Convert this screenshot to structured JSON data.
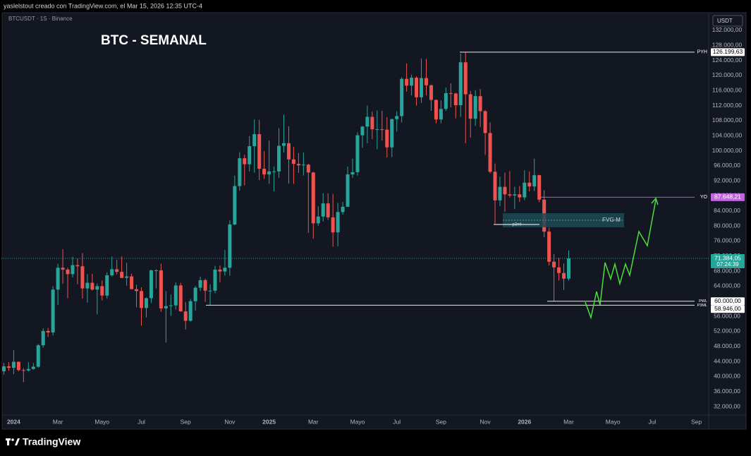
{
  "header": "yaslelstout creado con TradingView.com, el Mar 15, 2026 12:35 UTC-4",
  "footer": "TradingView",
  "chart_data": {
    "type": "candlestick",
    "title": "BTC - SEMANAL",
    "symbol": "BTCUSDT · 1S · Binance",
    "currency": "USDT",
    "up_color": "#26a69a",
    "down_color": "#ef5350",
    "categories": [
      null,
      null,
      "2024",
      null,
      null,
      null,
      null,
      null,
      null,
      null,
      null,
      "Mar",
      null,
      null,
      null,
      null,
      null,
      null,
      null,
      null,
      "Mayo",
      null,
      null,
      null,
      null,
      null,
      null,
      null,
      "Jul",
      null,
      null,
      null,
      null,
      null,
      null,
      null,
      null,
      "Sep",
      null,
      null,
      null,
      null,
      null,
      null,
      null,
      null,
      "Nov",
      null,
      null,
      null,
      null,
      null,
      null,
      null,
      "2025",
      null,
      null,
      null,
      null,
      null,
      null,
      null,
      null,
      "Mar",
      null,
      null,
      null,
      null,
      null,
      null,
      null,
      null,
      "Mayo",
      null,
      null,
      null,
      null,
      null,
      null,
      null,
      "Jul",
      null,
      null,
      null,
      null,
      null,
      null,
      null,
      null,
      "Sep",
      null,
      null,
      null,
      null,
      null,
      null,
      null,
      null,
      "Nov",
      null,
      null,
      null,
      null,
      null,
      null,
      null,
      "2026",
      null,
      null,
      null,
      null,
      null,
      null,
      null,
      null,
      "Mar",
      null,
      null,
      null,
      null,
      null,
      null,
      null,
      null,
      "Mayo",
      null,
      null,
      null,
      null,
      null,
      null,
      null,
      "Jul",
      null,
      null,
      null,
      null,
      null,
      null,
      null,
      null,
      "Sep",
      null,
      null
    ],
    "open": [
      41400,
      42700,
      42300,
      43900,
      41700,
      41600,
      42000,
      42600,
      48300,
      52100,
      51700,
      63100,
      68900,
      68400,
      67200,
      69600,
      69300,
      63400,
      64900,
      63100,
      64000,
      61500,
      66900,
      68500,
      67800,
      66200,
      66600,
      63200,
      62700,
      58200,
      60800,
      68200,
      68200,
      58100,
      58700,
      58900,
      64200,
      57300,
      54800,
      60000,
      63600,
      65600,
      62800,
      62800,
      68400,
      67900,
      68900,
      80400,
      90600,
      98000,
      96400,
      101200,
      104400,
      95200,
      93700,
      94500,
      94500,
      101300,
      102000,
      97700,
      96500,
      96100,
      96300,
      94200,
      80700,
      82500,
      86000,
      82300,
      78300,
      83700,
      85100,
      93700,
      94300,
      104100,
      106400,
      109000,
      105700,
      105700,
      105600,
      100900,
      108400,
      109200,
      119100,
      117300,
      119400,
      114200,
      119300,
      117400,
      113500,
      108300,
      111100,
      115300,
      115200,
      112100,
      123500,
      115000,
      108500,
      114500,
      110500,
      104700,
      94400,
      86800,
      90400,
      88400,
      88100,
      88400,
      87600,
      91500,
      90500,
      93500,
      87000,
      78500,
      70500,
      69000,
      67500,
      66000,
      null,
      null,
      null,
      null,
      null,
      null,
      null,
      null,
      null,
      null,
      null,
      null,
      null,
      null,
      null,
      null,
      null,
      null,
      null,
      null,
      null,
      null,
      null,
      null,
      null,
      null,
      null,
      null
    ],
    "high": [
      43600,
      43800,
      47000,
      44000,
      42200,
      43800,
      43600,
      48600,
      52800,
      52900,
      64000,
      70000,
      73800,
      68900,
      71800,
      71300,
      72800,
      67200,
      67300,
      64700,
      65500,
      67700,
      71900,
      71000,
      71900,
      70200,
      67300,
      64400,
      63700,
      61000,
      68400,
      68500,
      70000,
      62700,
      61800,
      65000,
      64900,
      59800,
      60600,
      64100,
      66500,
      66000,
      64500,
      69400,
      69500,
      73600,
      81500,
      93400,
      99600,
      98900,
      103900,
      108300,
      108200,
      99900,
      102700,
      95800,
      106000,
      109600,
      106500,
      101000,
      99400,
      99500,
      96500,
      94400,
      85200,
      88700,
      88700,
      88500,
      86100,
      86400,
      95800,
      97900,
      104900,
      106600,
      112000,
      110400,
      110700,
      110600,
      108900,
      108500,
      110500,
      119500,
      123200,
      120200,
      119800,
      124500,
      124400,
      117600,
      113600,
      113400,
      116800,
      117900,
      115400,
      125800,
      126200,
      115900,
      116100,
      116400,
      110800,
      107500,
      96600,
      93100,
      94200,
      94600,
      90400,
      90600,
      94800,
      94500,
      97900,
      93600,
      89500,
      79500,
      72500,
      71500,
      70000,
      73500,
      null,
      null,
      null,
      null,
      null,
      null,
      null,
      null,
      null,
      null,
      null,
      null,
      null,
      null,
      null,
      null,
      null,
      null,
      null,
      null,
      null,
      null,
      null,
      null,
      null,
      null,
      null,
      null
    ],
    "low": [
      40500,
      41500,
      40600,
      41400,
      38500,
      41300,
      41800,
      42300,
      47700,
      50500,
      50900,
      59000,
      64600,
      60800,
      66300,
      64500,
      60700,
      59600,
      62800,
      56500,
      60200,
      60700,
      66600,
      67100,
      66100,
      64100,
      63400,
      58400,
      53500,
      55700,
      59500,
      63400,
      57200,
      49000,
      56100,
      57800,
      57200,
      52500,
      54600,
      57500,
      62700,
      59800,
      58900,
      62100,
      65100,
      66800,
      66800,
      80200,
      89400,
      90800,
      94500,
      94200,
      92200,
      92500,
      91200,
      89200,
      92800,
      99500,
      91300,
      91200,
      94100,
      93400,
      78200,
      76600,
      80000,
      81200,
      81600,
      74500,
      74600,
      83000,
      85100,
      92800,
      93400,
      100800,
      102000,
      103100,
      100400,
      102700,
      98200,
      98300,
      105100,
      107500,
      115700,
      114700,
      112000,
      112700,
      114700,
      110600,
      107300,
      107300,
      110600,
      111500,
      108600,
      109000,
      102000,
      103500,
      106600,
      106300,
      98900,
      94000,
      80600,
      85300,
      83800,
      87600,
      84500,
      86400,
      86900,
      89200,
      89300,
      86300,
      77000,
      69500,
      60000,
      65500,
      63000,
      65500,
      null,
      null,
      null,
      null,
      null,
      null,
      null,
      null,
      null,
      null,
      null,
      null,
      null,
      null,
      null,
      null,
      null,
      null,
      null,
      null,
      null,
      null,
      null,
      null,
      null,
      null,
      null,
      null
    ],
    "close": [
      42700,
      42300,
      43900,
      41700,
      41600,
      42000,
      42600,
      48300,
      52100,
      51700,
      63100,
      68900,
      68400,
      67200,
      69600,
      69300,
      63400,
      64900,
      63100,
      64000,
      61500,
      66900,
      68500,
      67800,
      66200,
      66600,
      63200,
      62700,
      58200,
      60800,
      68200,
      68200,
      58100,
      58700,
      58900,
      64200,
      57300,
      54800,
      60000,
      63600,
      65600,
      62800,
      62800,
      68400,
      67900,
      68900,
      80400,
      90600,
      98000,
      96400,
      101200,
      104400,
      95200,
      93700,
      94500,
      94500,
      101300,
      102000,
      97700,
      96500,
      96100,
      96300,
      94200,
      80700,
      82500,
      86000,
      82300,
      78300,
      83700,
      85100,
      93700,
      94300,
      104100,
      106400,
      109000,
      105700,
      105700,
      105600,
      100900,
      108400,
      109200,
      119100,
      117300,
      119400,
      114200,
      119300,
      117400,
      113500,
      108300,
      111100,
      115300,
      115200,
      112100,
      123500,
      115000,
      108500,
      114500,
      110500,
      104700,
      94400,
      86800,
      90400,
      88400,
      88100,
      88400,
      87600,
      91500,
      90500,
      93500,
      87000,
      78500,
      70500,
      69000,
      67500,
      66000,
      71384.05,
      null,
      null,
      null,
      null,
      null,
      null,
      null,
      null,
      null,
      null,
      null,
      null,
      null,
      null,
      null,
      null,
      null,
      null,
      null,
      null,
      null,
      null,
      null,
      null,
      null,
      null,
      null,
      null
    ],
    "ylim": [
      29750,
      136300
    ],
    "yticks": [
      {
        "value": 32000,
        "label": "32.000,00"
      },
      {
        "value": 36000,
        "label": "36.000,00"
      },
      {
        "value": 40000,
        "label": "40.000,00"
      },
      {
        "value": 44000,
        "label": "44.000,00"
      },
      {
        "value": 48000,
        "label": "48.000,00"
      },
      {
        "value": 52000,
        "label": "52.000,00"
      },
      {
        "value": 56000,
        "label": "56.000,00"
      },
      {
        "value": 60000,
        "label": "60.000,00"
      },
      {
        "value": 64000,
        "label": "64.000,00"
      },
      {
        "value": 68000,
        "label": "68.000,00"
      },
      {
        "value": 72000,
        "label": "72.000,00"
      },
      {
        "value": 76000,
        "label": "76.000,00"
      },
      {
        "value": 80000,
        "label": "80.000,00"
      },
      {
        "value": 84000,
        "label": "84.000,00"
      },
      {
        "value": 88000,
        "label": "88.000,00"
      },
      {
        "value": 92000,
        "label": "92.000,00"
      },
      {
        "value": 96000,
        "label": "96.000,00"
      },
      {
        "value": 100000,
        "label": "100.000,00"
      },
      {
        "value": 104000,
        "label": "104.000,00"
      },
      {
        "value": 108000,
        "label": "108.000,00"
      },
      {
        "value": 112000,
        "label": "112.000,00"
      },
      {
        "value": 116000,
        "label": "116.000,00"
      },
      {
        "value": 120000,
        "label": "120.000,00"
      },
      {
        "value": 124000,
        "label": "124.000,00"
      },
      {
        "value": 128000,
        "label": "128.000,00"
      },
      {
        "value": 132000,
        "label": "132.000,00"
      }
    ],
    "grid": false,
    "levels": [
      {
        "name": "PYH",
        "value": 126199.63,
        "label": "126.199,63",
        "color": "#ffffff"
      },
      {
        "name": "YO",
        "value": 87648.21,
        "label": "87.648,21",
        "color": "#c264e0"
      },
      {
        "name": "PWL",
        "value": 60000,
        "label": "60.000,00",
        "color": "#ffffff"
      },
      {
        "name": "P3ML",
        "value": 58946,
        "label": "58.946,00",
        "color": "#ffffff"
      }
    ],
    "last_price": {
      "value": 71384.05,
      "label": "71.384,05",
      "countdown": "07:24:39"
    },
    "annotations": {
      "fvg": "FVG-M",
      "p3ml": "p3ml"
    }
  }
}
